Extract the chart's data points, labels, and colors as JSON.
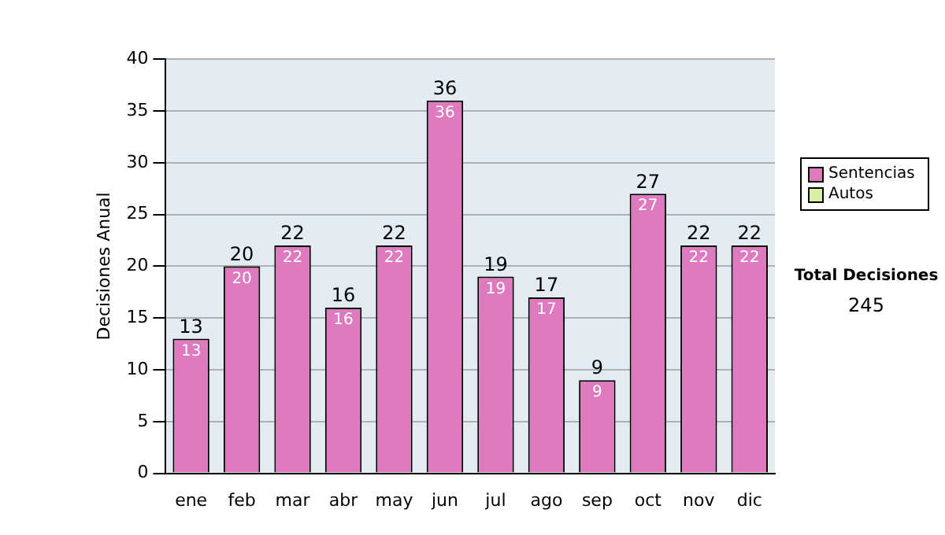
{
  "chart_data": {
    "type": "bar",
    "ylabel": "Decisiones Anual",
    "categories": [
      "ene",
      "feb",
      "mar",
      "abr",
      "may",
      "jun",
      "jul",
      "ago",
      "sep",
      "oct",
      "nov",
      "dic"
    ],
    "series": [
      {
        "name": "Sentencias",
        "color": "#dd7bbe",
        "values": [
          13,
          20,
          22,
          16,
          22,
          36,
          19,
          17,
          9,
          27,
          22,
          22
        ],
        "value_labels": [
          "13",
          "20",
          "22",
          "16",
          "22",
          "36",
          "19",
          "17",
          "9",
          "27",
          "22",
          "22"
        ]
      },
      {
        "name": "Autos",
        "color": "#d9f0a3",
        "values": [
          0,
          0,
          0,
          0,
          0,
          0,
          0,
          0,
          0,
          0,
          0,
          0
        ]
      }
    ],
    "stacked": true,
    "totals": [
      "13",
      "20",
      "22",
      "16",
      "22",
      "36",
      "19",
      "17",
      "9",
      "27",
      "22",
      "22"
    ],
    "ylim": [
      0,
      40
    ],
    "yticks": [
      0,
      5,
      10,
      15,
      20,
      25,
      30,
      35,
      40
    ],
    "grid": "y",
    "legend": "right",
    "annotations": [
      "Total Decisiones",
      "245"
    ]
  }
}
